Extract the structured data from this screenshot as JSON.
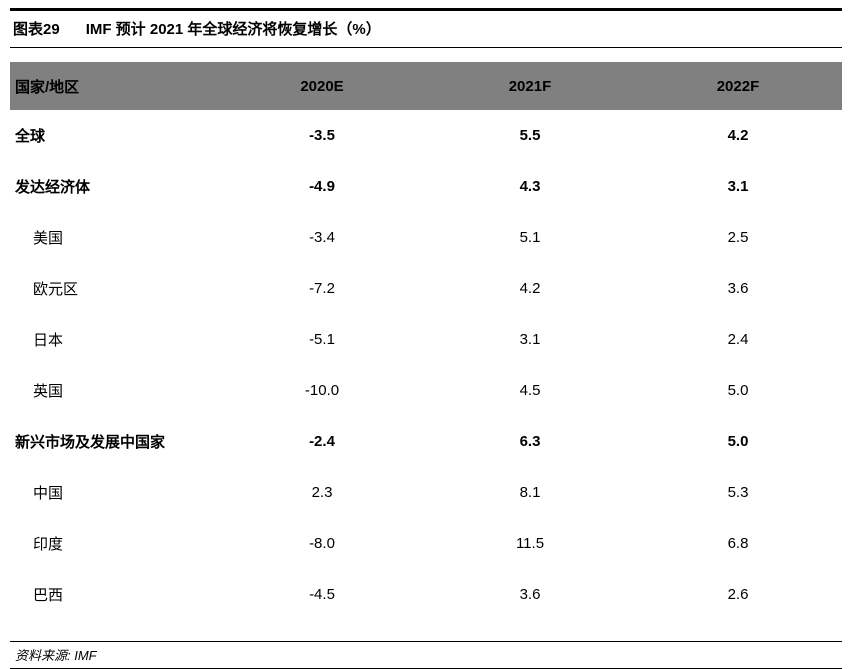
{
  "title": {
    "label": "图表29",
    "text": "IMF 预计 2021 年全球经济将恢复增长（%）"
  },
  "table": {
    "columns": [
      "国家/地区",
      "2020E",
      "2021F",
      "2022F"
    ],
    "rows": [
      {
        "name": "全球",
        "bold": true,
        "indent": false,
        "values": [
          "-3.5",
          "5.5",
          "4.2"
        ]
      },
      {
        "name": "发达经济体",
        "bold": true,
        "indent": false,
        "values": [
          "-4.9",
          "4.3",
          "3.1"
        ]
      },
      {
        "name": "美国",
        "bold": false,
        "indent": true,
        "values": [
          "-3.4",
          "5.1",
          "2.5"
        ]
      },
      {
        "name": "欧元区",
        "bold": false,
        "indent": true,
        "values": [
          "-7.2",
          "4.2",
          "3.6"
        ]
      },
      {
        "name": "日本",
        "bold": false,
        "indent": true,
        "values": [
          "-5.1",
          "3.1",
          "2.4"
        ]
      },
      {
        "name": "英国",
        "bold": false,
        "indent": true,
        "values": [
          "-10.0",
          "4.5",
          "5.0"
        ]
      },
      {
        "name": "新兴市场及发展中国家",
        "bold": true,
        "indent": false,
        "values": [
          "-2.4",
          "6.3",
          "5.0"
        ]
      },
      {
        "name": "中国",
        "bold": false,
        "indent": true,
        "values": [
          "2.3",
          "8.1",
          "5.3"
        ]
      },
      {
        "name": "印度",
        "bold": false,
        "indent": true,
        "values": [
          "-8.0",
          "11.5",
          "6.8"
        ]
      },
      {
        "name": "巴西",
        "bold": false,
        "indent": true,
        "values": [
          "-4.5",
          "3.6",
          "2.6"
        ]
      }
    ]
  },
  "footer": {
    "source": "资料来源: IMF"
  },
  "colors": {
    "header_bg": "#808080",
    "rule": "#000000",
    "text": "#000000",
    "background": "#ffffff"
  },
  "chart_data": {
    "type": "table",
    "title": "图表29 IMF 预计 2021 年全球经济将恢复增长（%）",
    "columns": [
      "国家/地区",
      "2020E",
      "2021F",
      "2022F"
    ],
    "rows": [
      [
        "全球",
        -3.5,
        5.5,
        4.2
      ],
      [
        "发达经济体",
        -4.9,
        4.3,
        3.1
      ],
      [
        "美国",
        -3.4,
        5.1,
        2.5
      ],
      [
        "欧元区",
        -7.2,
        4.2,
        3.6
      ],
      [
        "日本",
        -5.1,
        3.1,
        2.4
      ],
      [
        "英国",
        -10.0,
        4.5,
        5.0
      ],
      [
        "新兴市场及发展中国家",
        -2.4,
        6.3,
        5.0
      ],
      [
        "中国",
        2.3,
        8.1,
        5.3
      ],
      [
        "印度",
        -8.0,
        11.5,
        6.8
      ],
      [
        "巴西",
        -4.5,
        3.6,
        2.6
      ]
    ],
    "unit": "%",
    "source": "IMF"
  }
}
